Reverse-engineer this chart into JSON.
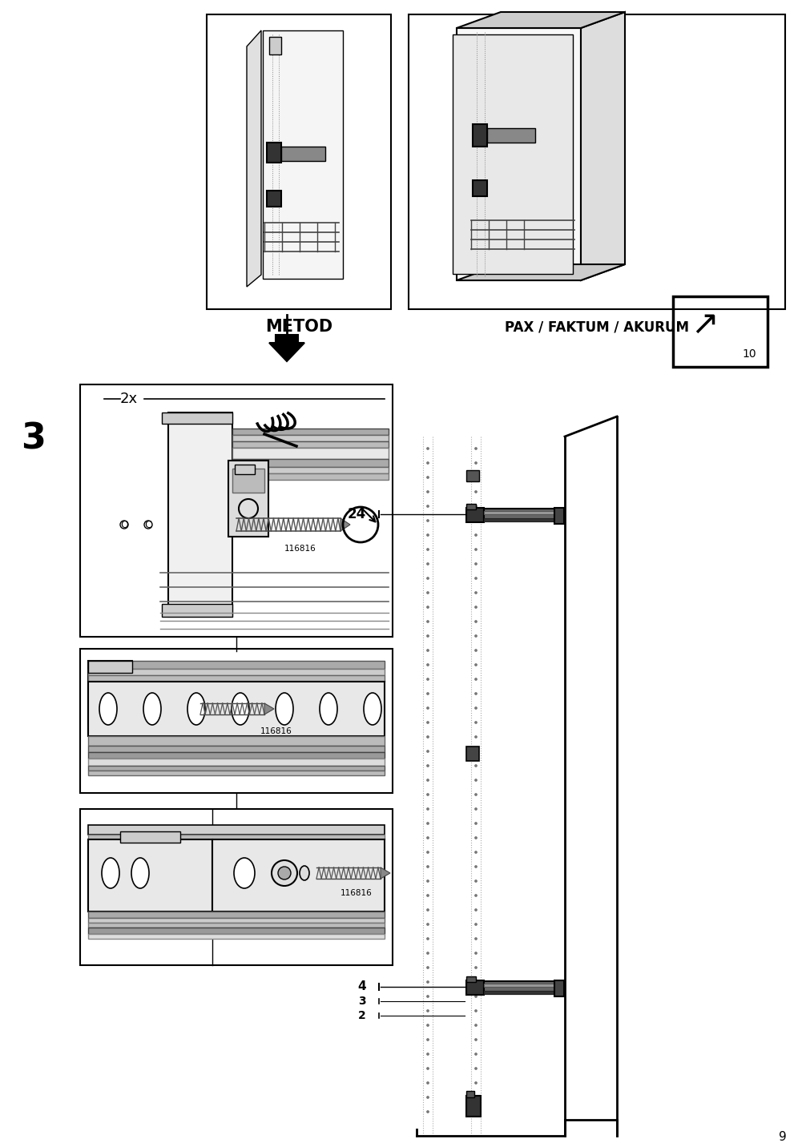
{
  "page_number": "9",
  "background_color": "#ffffff",
  "step_number": "3",
  "metod_label": "METOD",
  "pax_label": "PAX / FAKTUM / AKURUM",
  "page_ref": "10",
  "multiplier_label": "2x",
  "part_number": "116816",
  "measurement_24": "24",
  "measurement_4": "4",
  "measurement_3": "3",
  "measurement_2": "2",
  "step_fontsize": 32,
  "label_fontsize": 11,
  "bold_fontsize": 15
}
